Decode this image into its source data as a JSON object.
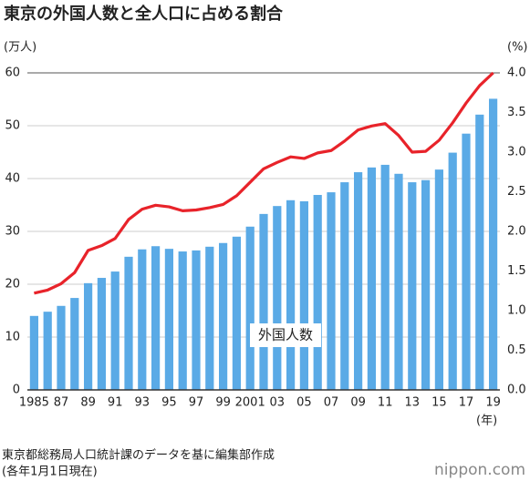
{
  "chart_data": {
    "type": "bar",
    "title": "東京の外国人数と全人口に占める割合",
    "y_label": "(万人)",
    "y2_label": "(%)",
    "x_label": "(年)",
    "categories": [
      "1985",
      null,
      "87",
      null,
      "89",
      null,
      "91",
      null,
      "93",
      null,
      "95",
      null,
      "97",
      null,
      "99",
      null,
      "2001",
      null,
      "03",
      null,
      "05",
      null,
      "07",
      null,
      "09",
      null,
      "11",
      null,
      "13",
      null,
      "15",
      null,
      "17",
      null,
      "19"
    ],
    "series": [
      {
        "name": "外国人数",
        "type": "bar",
        "color": "#5aaae6",
        "values": [
          14.0,
          14.8,
          15.9,
          17.4,
          20.2,
          21.2,
          22.4,
          25.2,
          26.6,
          27.2,
          26.7,
          26.2,
          26.4,
          27.1,
          27.8,
          29.0,
          30.9,
          33.3,
          34.8,
          35.9,
          35.7,
          36.9,
          37.4,
          39.3,
          41.2,
          42.1,
          42.6,
          40.9,
          39.3,
          39.7,
          41.7,
          44.9,
          48.5,
          52.1,
          55.1
        ]
      },
      {
        "type": "line",
        "axis": "y2",
        "color": "#e8232a",
        "values": [
          1.22,
          1.26,
          1.34,
          1.48,
          1.76,
          1.82,
          1.91,
          2.15,
          2.28,
          2.33,
          2.31,
          2.26,
          2.27,
          2.3,
          2.34,
          2.45,
          2.62,
          2.79,
          2.87,
          2.94,
          2.92,
          2.99,
          3.02,
          3.14,
          3.28,
          3.33,
          3.36,
          3.21,
          3.0,
          3.01,
          3.15,
          3.37,
          3.62,
          3.84,
          4.0
        ]
      }
    ],
    "ylim": [
      0,
      60
    ],
    "yticks": [
      0,
      10,
      20,
      30,
      40,
      50,
      60
    ],
    "y2lim": [
      0,
      4
    ],
    "y2ticks": [
      {
        "value": 0,
        "label": "0.0"
      },
      0.5,
      {
        "value": 1,
        "label": "1.0"
      },
      1.5,
      {
        "value": 2,
        "label": "2.0"
      },
      2.5,
      {
        "value": 3,
        "label": "3.0"
      },
      3.5,
      {
        "value": 4,
        "label": "4.0"
      }
    ],
    "grid": true,
    "source": "東京都総務局人口統計課のデータを基に編集部作成",
    "note": "(各年1月1日現在)",
    "logo": "nippon.com"
  }
}
